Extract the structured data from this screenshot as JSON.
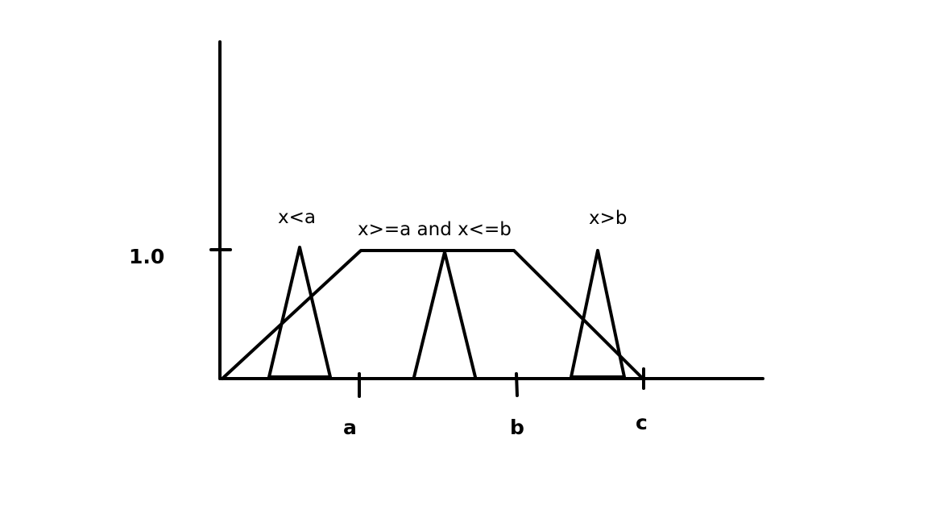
{
  "y_tick_label": "1.0",
  "x_ticks": [
    "a",
    "b",
    "c"
  ],
  "shapes": [
    {
      "label": "x<a"
    },
    {
      "label": "x>=a and x<=b"
    },
    {
      "label": "x>b"
    }
  ]
}
